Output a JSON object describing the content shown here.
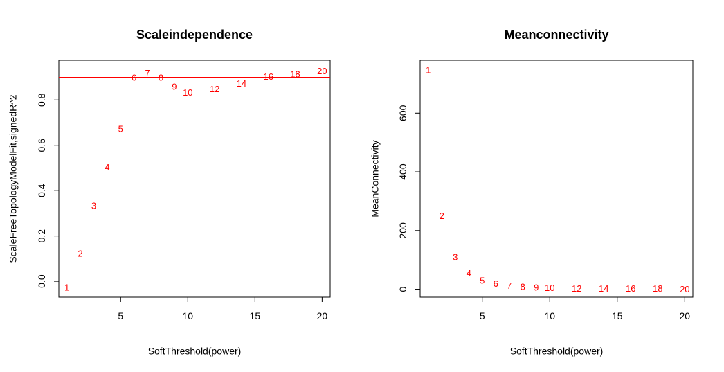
{
  "chart_data": [
    {
      "type": "scatter",
      "title": "Scaleindependence",
      "xlabel": "SoftThreshold(power)",
      "ylabel": "ScaleFreeTopologyModelFit,signedR^2",
      "xlim": [
        0.4,
        20.6
      ],
      "ylim": [
        -0.07,
        0.975
      ],
      "xticks": [
        "5",
        "10",
        "15",
        "20"
      ],
      "yticks": [
        "0.0",
        "0.2",
        "0.4",
        "0.6",
        "0.8"
      ],
      "point_color": "#ff0000",
      "hline": {
        "y": 0.9,
        "color": "#ff0000"
      },
      "points": [
        {
          "x": 1,
          "y": -0.03,
          "label": "1"
        },
        {
          "x": 2,
          "y": 0.12,
          "label": "2"
        },
        {
          "x": 3,
          "y": 0.33,
          "label": "3"
        },
        {
          "x": 4,
          "y": 0.5,
          "label": "4"
        },
        {
          "x": 5,
          "y": 0.67,
          "label": "5"
        },
        {
          "x": 6,
          "y": 0.895,
          "label": "6"
        },
        {
          "x": 7,
          "y": 0.915,
          "label": "7"
        },
        {
          "x": 8,
          "y": 0.895,
          "label": "8"
        },
        {
          "x": 9,
          "y": 0.855,
          "label": "9"
        },
        {
          "x": 10,
          "y": 0.83,
          "label": "10"
        },
        {
          "x": 12,
          "y": 0.845,
          "label": "12"
        },
        {
          "x": 14,
          "y": 0.87,
          "label": "14"
        },
        {
          "x": 16,
          "y": 0.9,
          "label": "16"
        },
        {
          "x": 18,
          "y": 0.91,
          "label": "18"
        },
        {
          "x": 20,
          "y": 0.925,
          "label": "20"
        }
      ]
    },
    {
      "type": "scatter",
      "title": "Meanconnectivity",
      "xlabel": "SoftThreshold(power)",
      "ylabel": "MeanConnectivity",
      "xlim": [
        0.4,
        20.6
      ],
      "ylim": [
        -27,
        780
      ],
      "xticks": [
        "5",
        "10",
        "15",
        "20"
      ],
      "yticks": [
        "0",
        "200",
        "400",
        "600"
      ],
      "point_color": "#ff0000",
      "points": [
        {
          "x": 1,
          "y": 745,
          "label": "1"
        },
        {
          "x": 2,
          "y": 248,
          "label": "2"
        },
        {
          "x": 3,
          "y": 107,
          "label": "3"
        },
        {
          "x": 4,
          "y": 52,
          "label": "4"
        },
        {
          "x": 5,
          "y": 27,
          "label": "5"
        },
        {
          "x": 6,
          "y": 16,
          "label": "6"
        },
        {
          "x": 7,
          "y": 10,
          "label": "7"
        },
        {
          "x": 8,
          "y": 6,
          "label": "8"
        },
        {
          "x": 9,
          "y": 4,
          "label": "9"
        },
        {
          "x": 10,
          "y": 2,
          "label": "10"
        },
        {
          "x": 12,
          "y": 0,
          "label": "12"
        },
        {
          "x": 14,
          "y": 0,
          "label": "14"
        },
        {
          "x": 16,
          "y": 0,
          "label": "16"
        },
        {
          "x": 18,
          "y": 0,
          "label": "18"
        },
        {
          "x": 20,
          "y": -2,
          "label": "20"
        }
      ]
    }
  ]
}
